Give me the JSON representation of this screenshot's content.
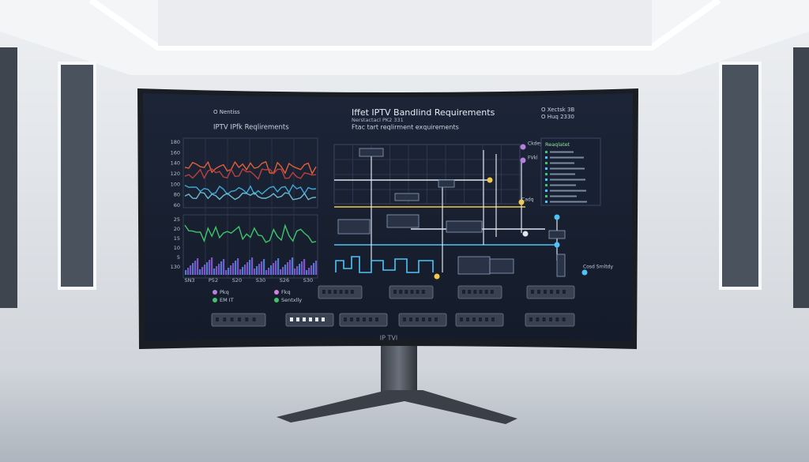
{
  "screen": {
    "header": {
      "left_title": "O Nentiss",
      "left_subtitle": "IPTV IPfk Reqlirements",
      "title": "Iffet IPTV Bandlind Requirements",
      "version": "Nerstactacl PK2 331",
      "subtitle": "Ftac tart reqlirment exquirements",
      "right_top": "O Xectsk 3B",
      "right_bottom": "O Huq 2330"
    },
    "upper_axis": [
      "180",
      "160",
      "140",
      "120",
      "100",
      "80",
      "60"
    ],
    "lower_axis": [
      "25",
      "20",
      "15",
      "10",
      "5",
      "130"
    ],
    "x_labels": [
      "SN3",
      "P52",
      "S20",
      "S30",
      "S26",
      "S30"
    ],
    "legend": [
      "Pkq",
      "Fkq",
      "EM IT",
      "Sentxlly"
    ],
    "panel_title": "Reaqlatet",
    "side_labels": [
      "Ckdey",
      "FVkl",
      "Cadq",
      "Cosd Srnltdy"
    ],
    "badge": "IP TVI"
  }
}
